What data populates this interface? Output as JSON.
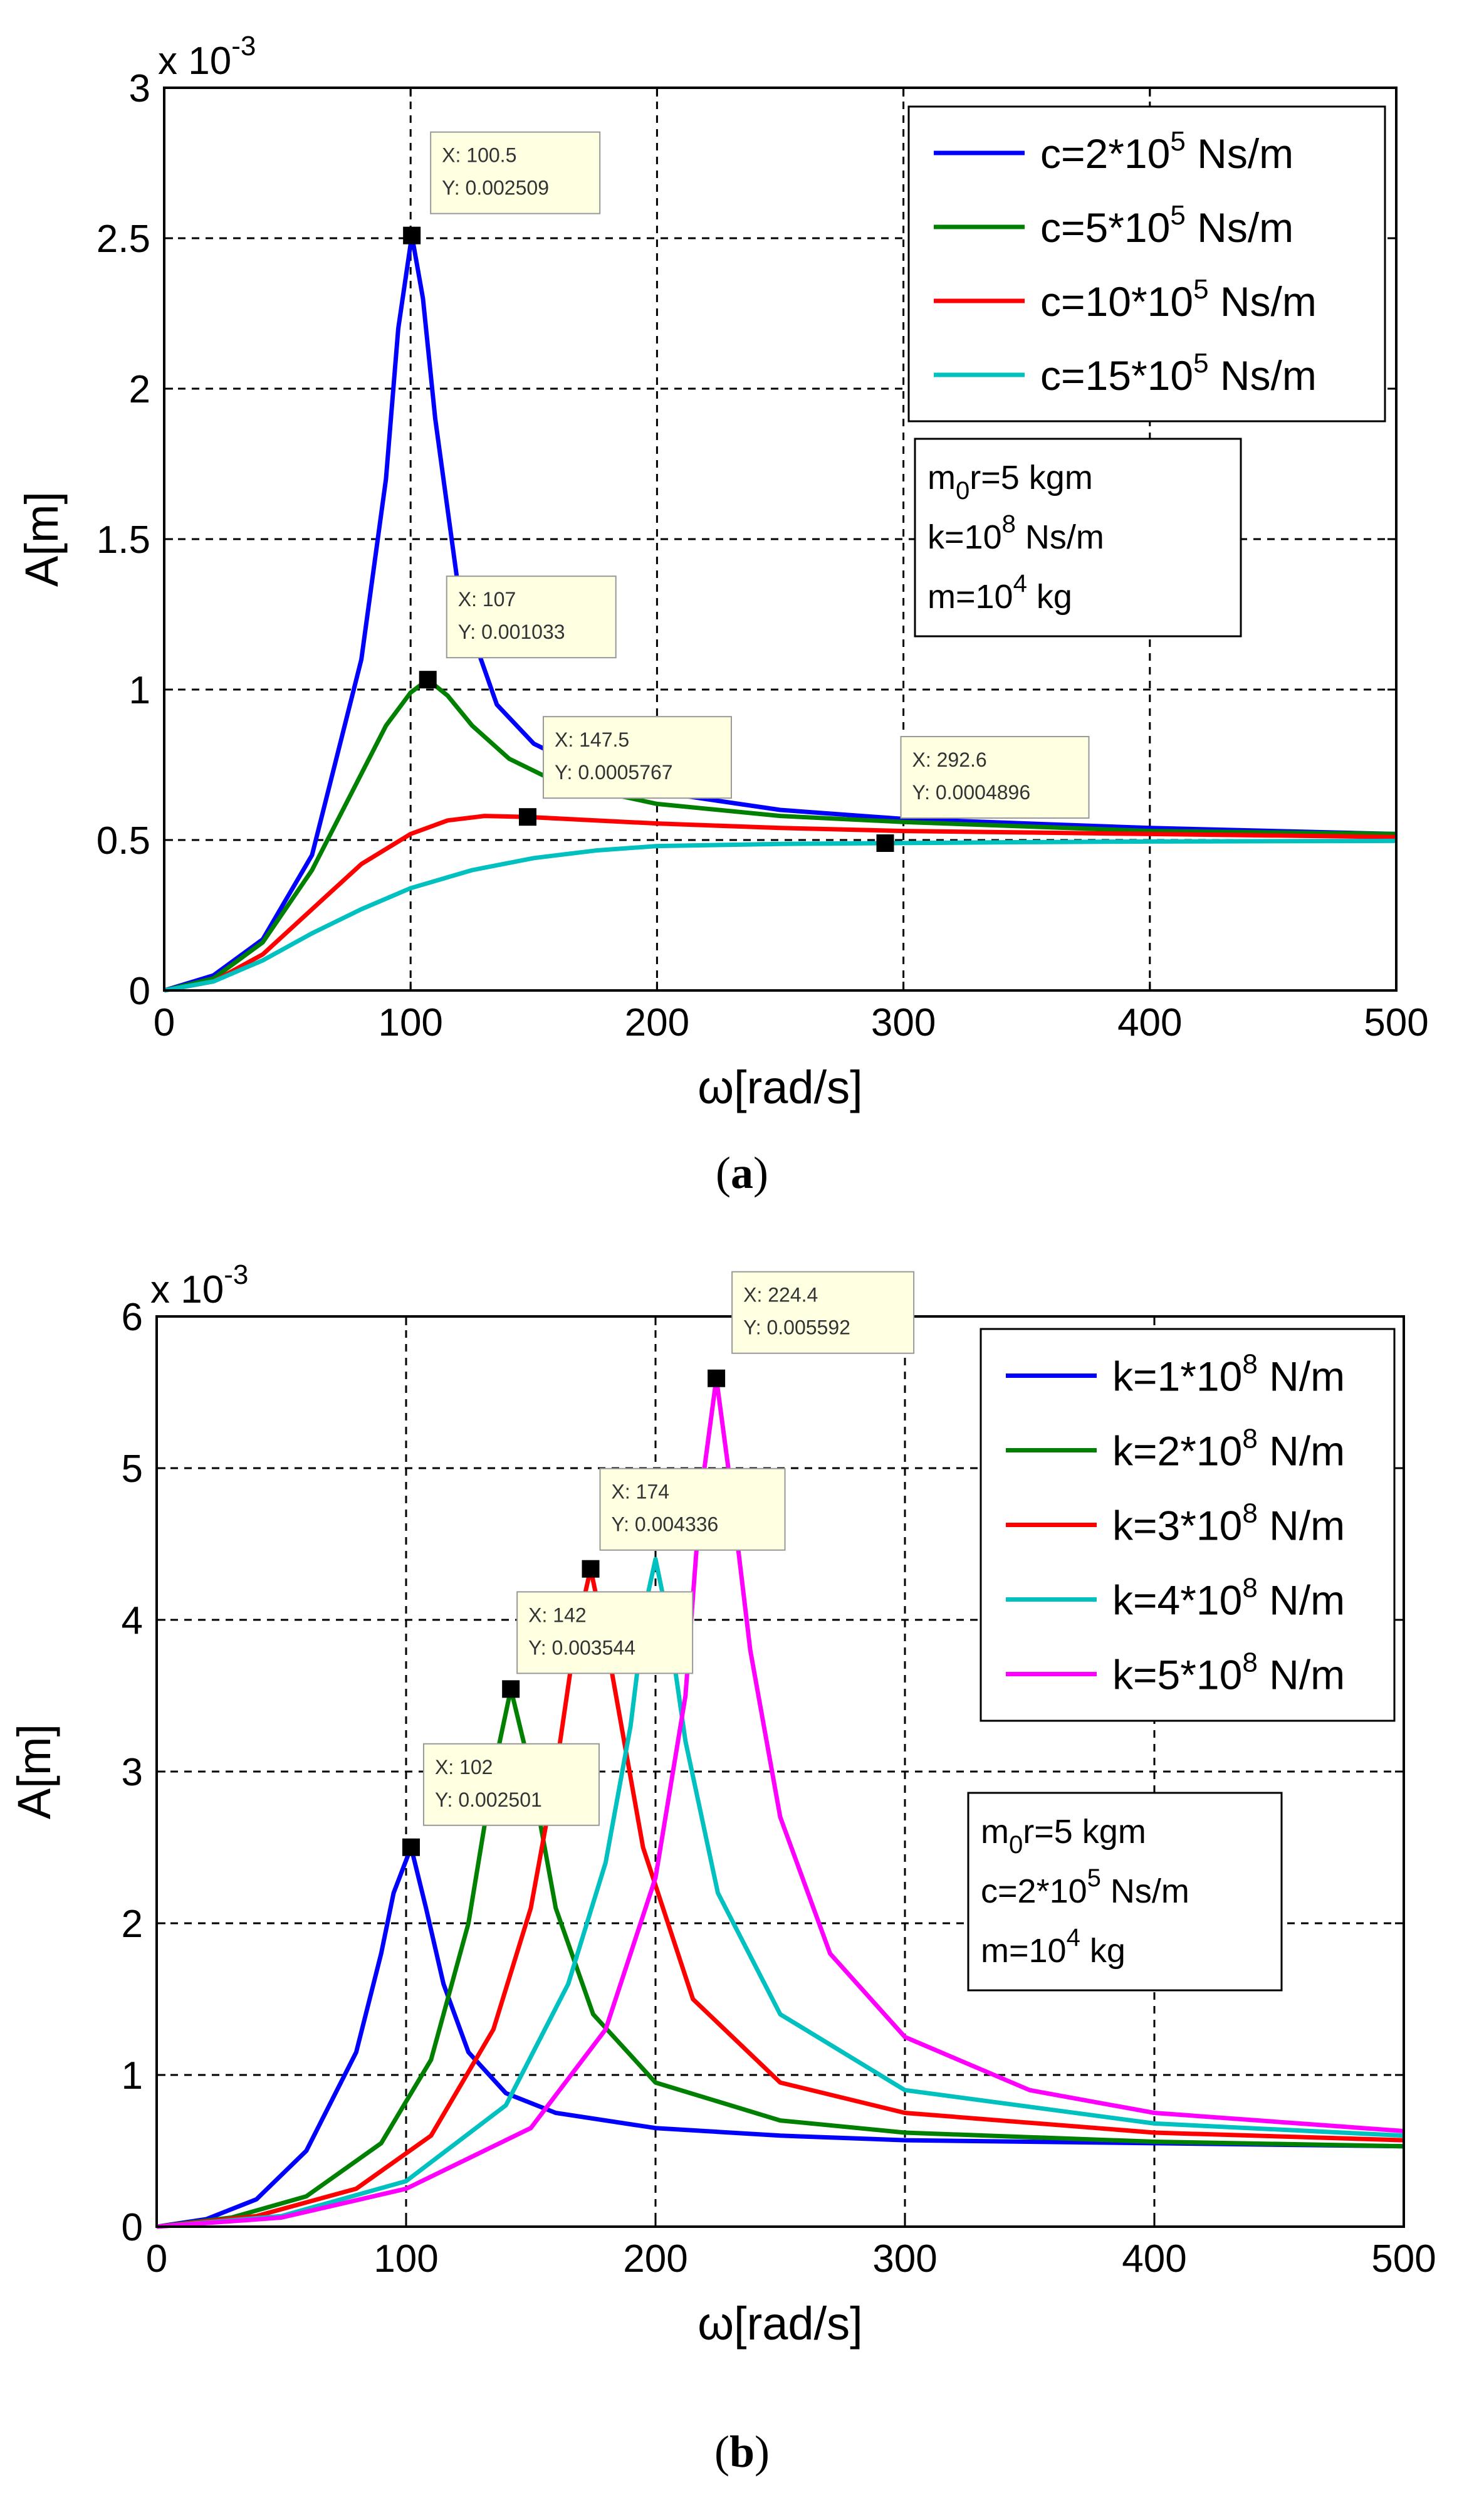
{
  "chart_data": [
    {
      "id": "a",
      "type": "line",
      "caption_letter": "a",
      "caption_open": "(",
      "caption_close": ")",
      "xlabel": "ω[rad/s]",
      "ylabel": "A[m]",
      "y_multiplier": "x 10",
      "y_exponent": "-3",
      "xlim": [
        0,
        500
      ],
      "ylim": [
        0,
        3
      ],
      "xticks": [
        "0",
        "100",
        "200",
        "300",
        "400",
        "500"
      ],
      "yticks": [
        "0",
        "0.5",
        "1",
        "1.5",
        "2",
        "2.5",
        "3"
      ],
      "grid": true,
      "legend_position": "top-right",
      "series": [
        {
          "name": "c=2*10^5 Ns/m",
          "base": "c=2*10",
          "exp": "5",
          "unit": " Ns/m",
          "color": "#0000ff",
          "x": [
            0,
            20,
            40,
            60,
            80,
            90,
            95,
            100.5,
            105,
            110,
            120,
            135,
            150,
            175,
            200,
            250,
            300,
            400,
            500
          ],
          "y": [
            0,
            0.05,
            0.17,
            0.45,
            1.1,
            1.7,
            2.2,
            2.509,
            2.3,
            1.9,
            1.3,
            0.95,
            0.82,
            0.72,
            0.66,
            0.6,
            0.57,
            0.54,
            0.52
          ]
        },
        {
          "name": "c=5*10^5 Ns/m",
          "base": "c=5*10",
          "exp": "5",
          "unit": " Ns/m",
          "color": "#008000",
          "x": [
            0,
            20,
            40,
            60,
            80,
            90,
            100,
            107,
            115,
            125,
            140,
            160,
            200,
            250,
            300,
            400,
            500
          ],
          "y": [
            0,
            0.04,
            0.16,
            0.4,
            0.72,
            0.88,
            0.99,
            1.033,
            0.98,
            0.88,
            0.77,
            0.69,
            0.62,
            0.58,
            0.56,
            0.53,
            0.52
          ]
        },
        {
          "name": "c=10*10^5 Ns/m",
          "base": "c=10*10",
          "exp": "5",
          "unit": " Ns/m",
          "color": "#ff0000",
          "x": [
            0,
            20,
            40,
            60,
            80,
            100,
            115,
            130,
            147.5,
            175,
            200,
            250,
            300,
            400,
            500
          ],
          "y": [
            0,
            0.03,
            0.12,
            0.27,
            0.42,
            0.52,
            0.565,
            0.58,
            0.5767,
            0.565,
            0.555,
            0.54,
            0.53,
            0.52,
            0.51
          ]
        },
        {
          "name": "c=15*10^5 Ns/m",
          "base": "c=15*10",
          "exp": "5",
          "unit": " Ns/m",
          "color": "#00c0c0",
          "x": [
            0,
            20,
            40,
            60,
            80,
            100,
            125,
            150,
            175,
            200,
            250,
            292.6,
            350,
            400,
            500
          ],
          "y": [
            0,
            0.03,
            0.1,
            0.19,
            0.27,
            0.34,
            0.4,
            0.44,
            0.465,
            0.48,
            0.487,
            0.4896,
            0.493,
            0.495,
            0.497
          ]
        }
      ],
      "datatips": [
        {
          "x": 100.5,
          "y": 2.509,
          "label_x": "X: 100.5",
          "label_y": "Y: 0.002509"
        },
        {
          "x": 107,
          "y": 1.033,
          "label_x": "X: 107",
          "label_y": "Y: 0.001033"
        },
        {
          "x": 147.5,
          "y": 0.5767,
          "label_x": "X: 147.5",
          "label_y": "Y: 0.0005767"
        },
        {
          "x": 292.6,
          "y": 0.4896,
          "label_x": "X: 292.6",
          "label_y": "Y: 0.0004896"
        }
      ],
      "params": [
        {
          "a": "m",
          "sub": "0",
          "b": "r=5 kgm",
          "sup": "",
          "c": ""
        },
        {
          "a": "k=10",
          "sub": "",
          "b": "",
          "sup": "8",
          "c": " Ns/m"
        },
        {
          "a": "m=10",
          "sub": "",
          "b": "",
          "sup": "4",
          "c": " kg"
        }
      ]
    },
    {
      "id": "b",
      "type": "line",
      "caption_letter": "b",
      "caption_open": "(",
      "caption_close": ")",
      "xlabel": "ω[rad/s]",
      "ylabel": "A[m]",
      "y_multiplier": "x 10",
      "y_exponent": "-3",
      "xlim": [
        0,
        500
      ],
      "ylim": [
        0,
        6
      ],
      "xticks": [
        "0",
        "100",
        "200",
        "300",
        "400",
        "500"
      ],
      "yticks": [
        "0",
        "1",
        "2",
        "3",
        "4",
        "5",
        "6"
      ],
      "grid": true,
      "legend_position": "top-right",
      "series": [
        {
          "name": "k=1*10^8 N/m",
          "base": "k=1*10",
          "exp": "8",
          "unit": " N/m",
          "color": "#0000ff",
          "x": [
            0,
            20,
            40,
            60,
            80,
            90,
            95,
            102,
            108,
            115,
            125,
            140,
            160,
            200,
            250,
            300,
            400,
            500
          ],
          "y": [
            0,
            0.05,
            0.18,
            0.5,
            1.15,
            1.8,
            2.2,
            2.501,
            2.1,
            1.6,
            1.15,
            0.88,
            0.75,
            0.65,
            0.6,
            0.57,
            0.55,
            0.53
          ]
        },
        {
          "name": "k=2*10^8 N/m",
          "base": "k=2*10",
          "exp": "8",
          "unit": " N/m",
          "color": "#008000",
          "x": [
            0,
            30,
            60,
            90,
            110,
            125,
            135,
            142,
            150,
            160,
            175,
            200,
            250,
            300,
            400,
            500
          ],
          "y": [
            0,
            0.06,
            0.2,
            0.55,
            1.1,
            2.0,
            3.0,
            3.544,
            3.0,
            2.1,
            1.4,
            0.95,
            0.7,
            0.62,
            0.56,
            0.53
          ]
        },
        {
          "name": "k=3*10^8 N/m",
          "base": "k=3*10",
          "exp": "8",
          "unit": " N/m",
          "color": "#ff0000",
          "x": [
            0,
            40,
            80,
            110,
            135,
            150,
            160,
            168,
            174,
            182,
            195,
            215,
            250,
            300,
            400,
            500
          ],
          "y": [
            0,
            0.07,
            0.25,
            0.6,
            1.3,
            2.1,
            3.0,
            3.9,
            4.336,
            3.7,
            2.5,
            1.5,
            0.95,
            0.75,
            0.62,
            0.57
          ]
        },
        {
          "name": "k=4*10^8 N/m",
          "base": "k=4*10",
          "exp": "8",
          "unit": " N/m",
          "color": "#00c0c0",
          "x": [
            0,
            50,
            100,
            140,
            165,
            180,
            190,
            196,
            200,
            205,
            212,
            225,
            250,
            300,
            400,
            500
          ],
          "y": [
            0,
            0.07,
            0.3,
            0.8,
            1.6,
            2.4,
            3.3,
            4.1,
            4.4,
            4.0,
            3.2,
            2.2,
            1.4,
            0.9,
            0.68,
            0.6
          ]
        },
        {
          "name": "k=5*10^8 N/m",
          "base": "k=5*10",
          "exp": "8",
          "unit": " N/m",
          "color": "#ff00ff",
          "x": [
            0,
            50,
            100,
            150,
            180,
            200,
            212,
            218,
            224.4,
            230,
            238,
            250,
            270,
            300,
            350,
            400,
            500
          ],
          "y": [
            0,
            0.06,
            0.25,
            0.65,
            1.3,
            2.3,
            3.5,
            4.8,
            5.592,
            4.9,
            3.8,
            2.7,
            1.8,
            1.25,
            0.9,
            0.75,
            0.63
          ]
        }
      ],
      "datatips": [
        {
          "x": 102,
          "y": 2.501,
          "label_x": "X: 102",
          "label_y": "Y: 0.002501"
        },
        {
          "x": 142,
          "y": 3.544,
          "label_x": "X: 142",
          "label_y": "Y: 0.003544"
        },
        {
          "x": 174,
          "y": 4.336,
          "label_x": "X: 174",
          "label_y": "Y: 0.004336"
        },
        {
          "x": 224.4,
          "y": 5.592,
          "label_x": "X: 224.4",
          "label_y": "Y: 0.005592"
        }
      ],
      "params": [
        {
          "a": "m",
          "sub": "0",
          "b": "r=5 kgm",
          "sup": "",
          "c": ""
        },
        {
          "a": "c=2*10",
          "sub": "",
          "b": "",
          "sup": "5",
          "c": " Ns/m"
        },
        {
          "a": "m=10",
          "sub": "",
          "b": "",
          "sup": "4",
          "c": " kg"
        }
      ]
    }
  ]
}
